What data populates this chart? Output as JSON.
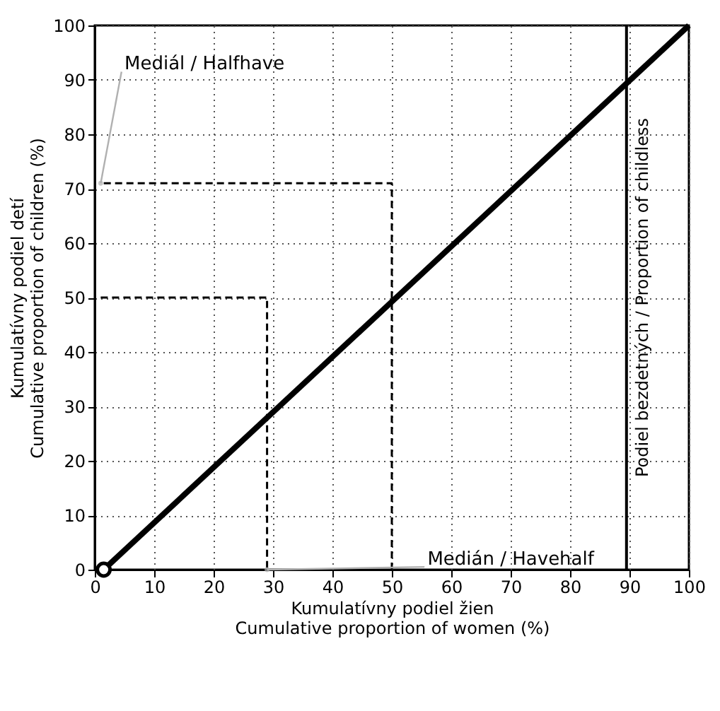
{
  "chart_data": {
    "type": "line",
    "xlabel": "Kumulatívny podiel žien\nCumulative proportion of women (%)",
    "ylabel": "Kumulatívny podiel detí\nCumulative proportion of children (%)",
    "xlim": [
      0,
      100
    ],
    "ylim": [
      0,
      100
    ],
    "xticks": [
      0,
      10,
      20,
      30,
      40,
      50,
      60,
      70,
      80,
      90,
      100
    ],
    "yticks": [
      0,
      10,
      20,
      30,
      40,
      50,
      60,
      70,
      80,
      90,
      100
    ],
    "grid": true,
    "line_style": "solid",
    "series": [
      {
        "color": "#000000",
        "x": [
          1.5,
          100
        ],
        "values": [
          0,
          100
        ]
      },
      {
        "type": "scatter",
        "marker": "circle",
        "color": "#000000",
        "x": [
          1.5
        ],
        "values": [
          0
        ]
      },
      {
        "line_style": "dashed",
        "color": "#000000",
        "x": [
          50,
          50,
          1
        ],
        "values": [
          0,
          71,
          71
        ]
      },
      {
        "line_style": "dashed",
        "color": "#000000",
        "x": [
          1,
          29,
          29
        ],
        "values": [
          50,
          50,
          0
        ]
      }
    ],
    "ref_lines": [
      {
        "axis": "x",
        "value": 89.5,
        "label": "Podiel bezdetných / Proportion of childless",
        "color": "#000000"
      }
    ],
    "annotations": [
      {
        "text": "Mediál / Halfhave",
        "x": 1,
        "y": 71
      },
      {
        "text": "Medián / Havehalf",
        "x": 29,
        "y": 0
      }
    ]
  }
}
